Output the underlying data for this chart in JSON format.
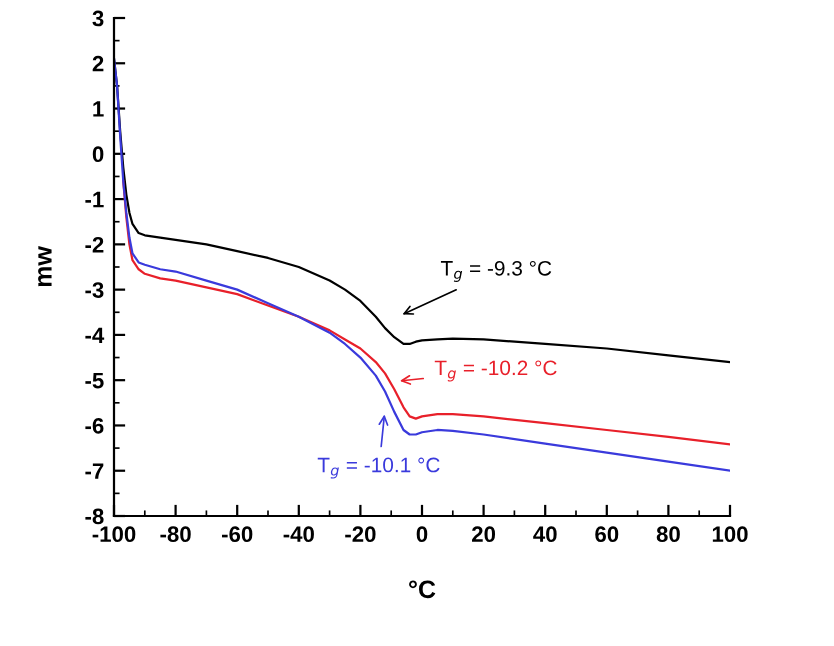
{
  "chart_data": {
    "type": "line",
    "xlabel": "°C",
    "ylabel": "mw",
    "xlim": [
      -100,
      100
    ],
    "ylim": [
      -8,
      3
    ],
    "xticks": [
      -100,
      -80,
      -60,
      -40,
      -20,
      0,
      20,
      40,
      60,
      80,
      100
    ],
    "yticks": [
      -8,
      -7,
      -6,
      -5,
      -4,
      -3,
      -2,
      -1,
      0,
      1,
      2,
      3
    ],
    "grid": false,
    "legend": false,
    "marker": "none",
    "line_style": "solid",
    "series": [
      {
        "color": "#000000",
        "x": [
          -100,
          -99,
          -98,
          -97,
          -96,
          -95,
          -94,
          -92,
          -90,
          -85,
          -80,
          -70,
          -60,
          -50,
          -40,
          -30,
          -25,
          -20,
          -15,
          -12,
          -9,
          -6,
          -4,
          -2,
          0,
          5,
          10,
          20,
          40,
          60,
          80,
          100
        ],
        "values": [
          2.1,
          1.5,
          0.5,
          -0.3,
          -0.9,
          -1.3,
          -1.55,
          -1.75,
          -1.8,
          -1.85,
          -1.9,
          -2.0,
          -2.15,
          -2.3,
          -2.5,
          -2.8,
          -3.0,
          -3.25,
          -3.6,
          -3.85,
          -4.05,
          -4.2,
          -4.2,
          -4.15,
          -4.12,
          -4.1,
          -4.08,
          -4.1,
          -4.2,
          -4.3,
          -4.45,
          -4.6
        ]
      },
      {
        "color": "#e8202a",
        "x": [
          -97,
          -96,
          -95,
          -94,
          -92,
          -90,
          -85,
          -80,
          -70,
          -60,
          -50,
          -40,
          -30,
          -25,
          -20,
          -15,
          -12,
          -9,
          -6,
          -4,
          -2,
          0,
          5,
          10,
          20,
          40,
          60,
          80,
          100
        ],
        "values": [
          -0.6,
          -1.4,
          -2.0,
          -2.35,
          -2.55,
          -2.65,
          -2.75,
          -2.8,
          -2.95,
          -3.1,
          -3.35,
          -3.6,
          -3.9,
          -4.1,
          -4.3,
          -4.6,
          -4.85,
          -5.2,
          -5.6,
          -5.8,
          -5.85,
          -5.8,
          -5.75,
          -5.75,
          -5.8,
          -5.95,
          -6.1,
          -6.25,
          -6.42
        ]
      },
      {
        "color": "#3a3adc",
        "x": [
          -100,
          -99,
          -98,
          -97,
          -96,
          -95,
          -94,
          -92,
          -90,
          -85,
          -80,
          -70,
          -60,
          -50,
          -40,
          -30,
          -25,
          -20,
          -15,
          -12,
          -9,
          -6,
          -4,
          -2,
          0,
          5,
          10,
          20,
          40,
          60,
          80,
          100
        ],
        "values": [
          2.1,
          1.5,
          0.4,
          -0.6,
          -1.3,
          -1.85,
          -2.2,
          -2.4,
          -2.45,
          -2.55,
          -2.6,
          -2.8,
          -3.0,
          -3.3,
          -3.6,
          -3.95,
          -4.2,
          -4.5,
          -4.9,
          -5.25,
          -5.7,
          -6.1,
          -6.2,
          -6.2,
          -6.15,
          -6.1,
          -6.12,
          -6.2,
          -6.4,
          -6.6,
          -6.8,
          -7.0
        ]
      }
    ],
    "annotations": [
      "T$_{g}$ = -9.3 °C",
      "T$_{g}$ = -10.2 °C",
      "T$_{g}$ = -10.1 °C"
    ]
  }
}
